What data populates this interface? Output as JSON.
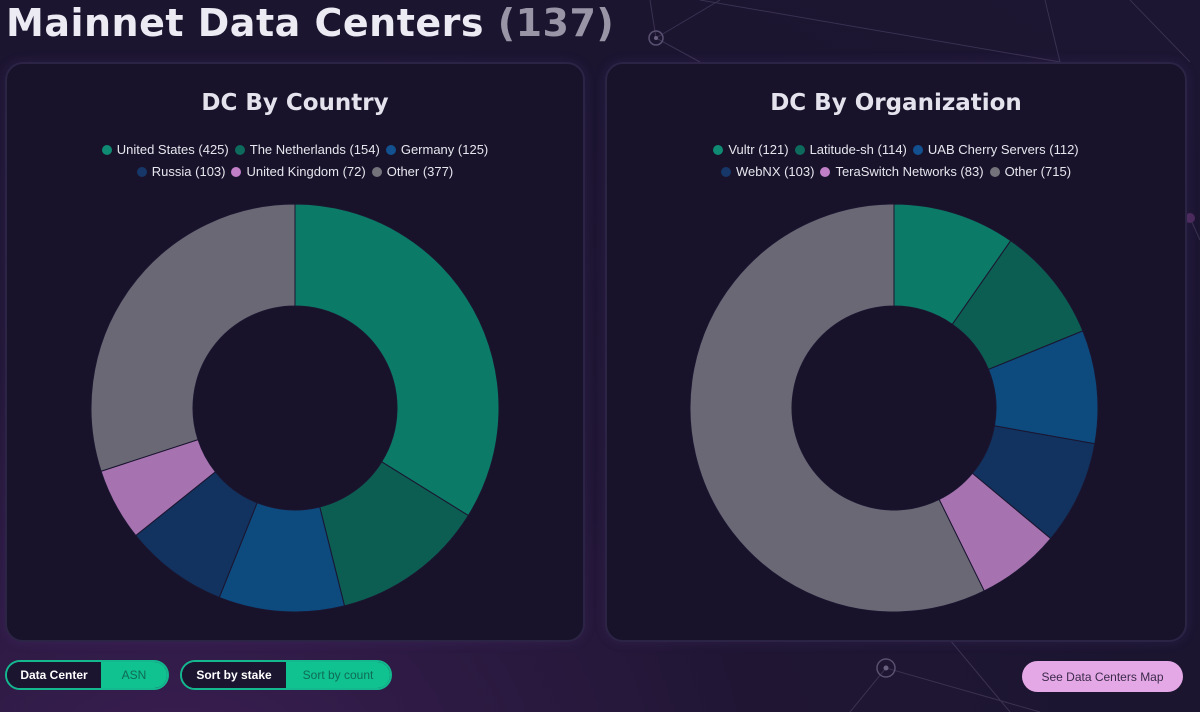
{
  "page": {
    "title": "Mainnet Data Centers",
    "count": "(137)"
  },
  "country_card": {
    "title": "DC By Country",
    "legend_rows": [
      [
        {
          "label": "United States (425)",
          "color": "#0f8a73"
        },
        {
          "label": "The Netherlands (154)",
          "color": "#0d6a5d"
        },
        {
          "label": "Germany (125)",
          "color": "#12508f"
        }
      ],
      [
        {
          "label": "Russia (103)",
          "color": "#163767"
        },
        {
          "label": "United Kingdom (72)",
          "color": "#c17fc8"
        },
        {
          "label": "Other (377)",
          "color": "#74737c"
        }
      ]
    ]
  },
  "org_card": {
    "title": "DC By Organization",
    "legend_rows": [
      [
        {
          "label": "Vultr (121)",
          "color": "#0f8a73"
        },
        {
          "label": "Latitude-sh (114)",
          "color": "#0d6a5d"
        },
        {
          "label": "UAB Cherry Servers (112)",
          "color": "#12508f"
        }
      ],
      [
        {
          "label": "WebNX (103)",
          "color": "#163767"
        },
        {
          "label": "TeraSwitch Networks (83)",
          "color": "#c17fc8"
        },
        {
          "label": "Other (715)",
          "color": "#74737c"
        }
      ]
    ]
  },
  "chart_data": [
    {
      "type": "pie",
      "title": "DC By Country",
      "categories": [
        "United States",
        "The Netherlands",
        "Germany",
        "Russia",
        "United Kingdom",
        "Other"
      ],
      "values": [
        425,
        154,
        125,
        103,
        72,
        377
      ],
      "colors": [
        "#0b7b67",
        "#0c5e53",
        "#0d4a7e",
        "#12335f",
        "#a673b0",
        "#6a6875"
      ],
      "donut": true
    },
    {
      "type": "pie",
      "title": "DC By Organization",
      "categories": [
        "Vultr",
        "Latitude-sh",
        "UAB Cherry Servers",
        "WebNX",
        "TeraSwitch Networks",
        "Other"
      ],
      "values": [
        121,
        114,
        112,
        103,
        83,
        715
      ],
      "colors": [
        "#0b7b67",
        "#0c5e53",
        "#0d4a7e",
        "#12335f",
        "#a673b0",
        "#6a6875"
      ],
      "donut": true
    }
  ],
  "controls": {
    "view_toggle": {
      "active": "Data Center",
      "inactive": "ASN"
    },
    "sort_toggle": {
      "active": "Sort by stake",
      "inactive": "Sort by count"
    },
    "map_button": "See Data Centers Map"
  }
}
